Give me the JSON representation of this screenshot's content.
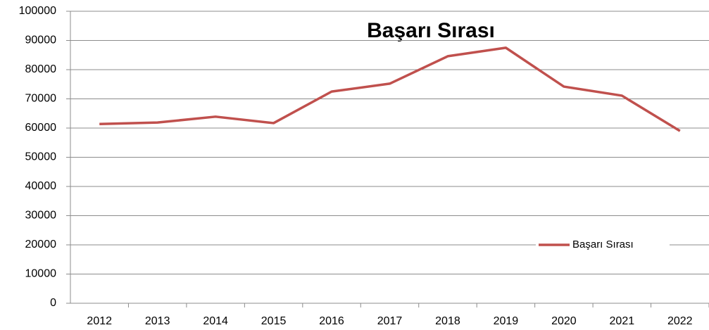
{
  "chart_data": {
    "type": "line",
    "title": "Başarı Sırası",
    "categories": [
      "2012",
      "2013",
      "2014",
      "2015",
      "2016",
      "2017",
      "2018",
      "2019",
      "2020",
      "2021",
      "2022"
    ],
    "series": [
      {
        "name": "Başarı Sırası",
        "color": "#c0504d",
        "values": [
          61400,
          61900,
          63900,
          61700,
          72500,
          75200,
          84600,
          87500,
          74200,
          71100,
          59000
        ]
      }
    ],
    "ylim": [
      0,
      100000
    ],
    "yticks": [
      0,
      10000,
      20000,
      30000,
      40000,
      50000,
      60000,
      70000,
      80000,
      90000,
      100000
    ],
    "grid": true,
    "legend": "lower right"
  }
}
